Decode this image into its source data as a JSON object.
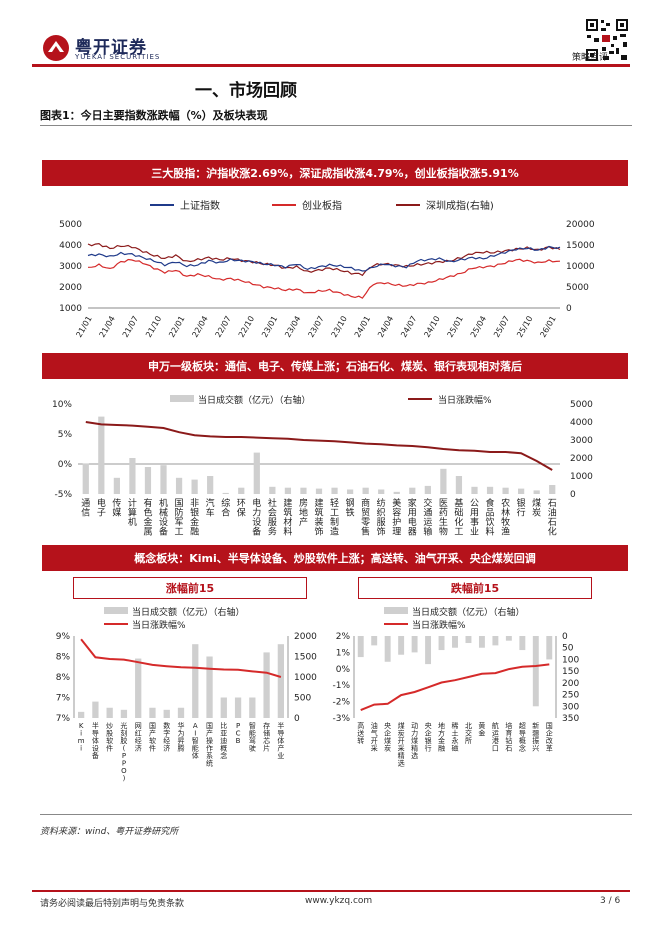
{
  "header": {
    "brand_cn": "粤开证券",
    "brand_en": "YUEKAI SECURITIES",
    "report_type": "策略点评"
  },
  "section_title": "一、市场回顾",
  "figure_title": "图表1：今日主要指数涨跌幅（%）及板块表现",
  "colors": {
    "brand_red": "#b5121b",
    "blue": "#1f3a8a",
    "red": "#d52a2a",
    "brown": "#8b1a1a",
    "bar_grey": "#cfcfcf"
  },
  "banners": {
    "indices": "三大股指：沪指收涨2.69%，深证成指收涨4.79%，创业板指收涨5.91%",
    "sectors": "申万一级板块：通信、电子、传媒上涨；石油石化、煤炭、银行表现相对落后",
    "concepts": "概念板块：Kimi、半导体设备、炒股软件上涨；高送转、油气开采、央企煤炭回调"
  },
  "subheads": {
    "up": "涨幅前15",
    "down": "跌幅前15"
  },
  "chart_data": [
    {
      "type": "line",
      "legend": [
        "上证指数",
        "创业板指",
        "深圳成指(右轴)"
      ],
      "x_ticks": [
        "21/01",
        "21/04",
        "21/07",
        "21/10",
        "22/01",
        "22/04",
        "22/07",
        "22/10",
        "23/01",
        "23/04",
        "23/07",
        "23/10",
        "24/01",
        "24/04",
        "24/07",
        "24/10",
        "25/01",
        "25/04",
        "25/07",
        "25/10",
        "26/01"
      ],
      "y_left_ticks": [
        "1000",
        "2000",
        "3000",
        "4000",
        "5000"
      ],
      "y_right_ticks": [
        "0",
        "5000",
        "10000",
        "15000",
        "20000"
      ],
      "ylim_left": [
        1000,
        5000
      ],
      "ylim_right": [
        0,
        20000
      ],
      "series": [
        {
          "name": "上证指数",
          "axis": "left",
          "values": [
            3500,
            3550,
            3450,
            3600,
            3560,
            3400,
            3250,
            3050,
            3200,
            3000,
            3050,
            3250,
            3150,
            3300,
            3250,
            3200,
            3100,
            3050,
            2950,
            3100,
            2850,
            2950,
            3050,
            3000,
            2900,
            2750,
            2950,
            3100,
            3000,
            2950,
            3250,
            3300,
            3350,
            3200,
            3300,
            3400,
            3350,
            3500,
            3650,
            3800,
            3850,
            3750,
            3900,
            3850
          ]
        },
        {
          "name": "创业板指",
          "axis": "left",
          "values": [
            2900,
            3050,
            2850,
            3200,
            3300,
            3150,
            2900,
            2700,
            2800,
            2500,
            2600,
            2500,
            2350,
            2400,
            2300,
            2150,
            2000,
            1950,
            1850,
            1900,
            1700,
            1800,
            1850,
            1700,
            1550,
            1500,
            2150,
            2200,
            2100,
            2050,
            2150,
            2200,
            2350,
            2500,
            2650,
            2900,
            2950,
            3000,
            3150,
            3300,
            3250,
            3150,
            3250,
            3200
          ]
        },
        {
          "name": "深圳成指(右轴)",
          "axis": "right",
          "values": [
            15000,
            15200,
            14200,
            14800,
            14600,
            13500,
            12500,
            11800,
            12500,
            11000,
            11500,
            12000,
            11500,
            11800,
            11300,
            11000,
            10500,
            10200,
            9500,
            9800,
            8600,
            9000,
            9500,
            9000,
            8300,
            8000,
            10200,
            10500,
            10200,
            9900,
            10300,
            10600,
            11000,
            11200,
            12000,
            13000,
            13300,
            13200,
            13600,
            14000,
            14300,
            13800,
            14500,
            14000
          ]
        }
      ]
    },
    {
      "type": "bar",
      "legend": [
        "当日成交额（亿元）（右轴）",
        "当日涨跌幅%"
      ],
      "categories": [
        "通信",
        "电子",
        "传媒",
        "计算机",
        "有色金属",
        "机械设备",
        "国防军工",
        "非银金融",
        "汽车",
        "综合",
        "环保",
        "电力设备",
        "社会服务",
        "建筑材料",
        "房地产",
        "建筑装饰",
        "轻工制造",
        "钢铁",
        "商贸零售",
        "纺织服饰",
        "美容护理",
        "家用电器",
        "交通运输",
        "医药生物",
        "基础化工",
        "公用事业",
        "食品饮料",
        "农林牧渔",
        "银行",
        "煤炭",
        "石油石化"
      ],
      "y_left_ticks": [
        "-5%",
        "0%",
        "5%",
        "10%"
      ],
      "y_right_ticks": [
        "0",
        "1000",
        "2000",
        "3000",
        "4000",
        "5000"
      ],
      "ylim_left": [
        -5,
        10
      ],
      "ylim_right": [
        0,
        5000
      ],
      "series": [
        {
          "name": "当日成交额（亿元）（右轴）",
          "axis": "right",
          "values": [
            1700,
            4300,
            900,
            2000,
            1500,
            1600,
            900,
            800,
            1000,
            60,
            350,
            2300,
            400,
            350,
            350,
            300,
            350,
            250,
            350,
            250,
            120,
            350,
            450,
            1400,
            1000,
            400,
            400,
            350,
            300,
            200,
            500
          ]
        },
        {
          "name": "当日涨跌幅%",
          "axis": "left",
          "values": [
            7.0,
            6.6,
            6.5,
            6.4,
            6.2,
            6.0,
            5.3,
            4.8,
            4.6,
            4.5,
            4.5,
            4.4,
            4.3,
            4.2,
            4.0,
            3.9,
            3.8,
            3.6,
            3.4,
            3.3,
            3.1,
            3.0,
            2.8,
            2.5,
            2.3,
            2.2,
            2.0,
            2.0,
            1.8,
            0.5,
            -1.0
          ]
        }
      ]
    },
    {
      "type": "bar",
      "legend": [
        "当日成交额（亿元）（右轴）",
        "当日涨跌幅%"
      ],
      "categories": [
        "Kimi",
        "半导体设备",
        "炒股软件",
        "光刻胶(PPO)",
        "网红经济",
        "国产软件",
        "数字经济",
        "华为昇腾",
        "AI智能体",
        "国产操作系统",
        "比亚迪概念",
        "PCB",
        "智能驾驶",
        "存储芯片",
        "半导体产业"
      ],
      "y_left_ticks": [
        "7%",
        "7%",
        "8%",
        "8%",
        "9%"
      ],
      "y_right_ticks": [
        "0",
        "500",
        "1000",
        "1500",
        "2000"
      ],
      "ylim_left": [
        6.5,
        9.0
      ],
      "ylim_right": [
        0,
        2000
      ],
      "series": [
        {
          "name": "当日成交额（亿元）（右轴）",
          "axis": "right",
          "values": [
            150,
            400,
            250,
            200,
            1450,
            250,
            200,
            250,
            1800,
            1500,
            500,
            500,
            500,
            1600,
            1800
          ]
        },
        {
          "name": "当日涨跌幅%",
          "axis": "left",
          "values": [
            8.9,
            8.35,
            8.3,
            8.28,
            8.2,
            8.12,
            8.08,
            8.05,
            8.03,
            8.0,
            7.98,
            7.97,
            7.92,
            7.88,
            7.75
          ]
        }
      ]
    },
    {
      "type": "bar",
      "legend": [
        "当日成交额（亿元）（右轴）",
        "当日涨跌幅%"
      ],
      "categories": [
        "高送转",
        "油气开采",
        "央企煤炭",
        "煤炭开采精选",
        "动力煤精选",
        "央企银行",
        "地方金融",
        "稀土永磁",
        "北交所",
        "黄金",
        "航运港口",
        "培育钻石",
        "超导概念",
        "新疆振兴",
        "国企改革"
      ],
      "y_left_ticks": [
        "-3%",
        "-2%",
        "-1%",
        "0%",
        "1%",
        "2%"
      ],
      "y_right_ticks": [
        "0",
        "50",
        "100",
        "150",
        "200",
        "250",
        "300",
        "350"
      ],
      "ylim_left": [
        -3.2,
        2.0
      ],
      "ylim_right": [
        350,
        0
      ],
      "series": [
        {
          "name": "当日成交额（亿元）（右轴）",
          "axis": "right",
          "values": [
            90,
            40,
            110,
            80,
            70,
            120,
            60,
            50,
            30,
            50,
            40,
            20,
            60,
            300,
            100
          ]
        },
        {
          "name": "当日涨跌幅%",
          "axis": "left",
          "values": [
            -2.7,
            -2.35,
            -2.3,
            -1.75,
            -1.55,
            -1.25,
            -0.95,
            -0.8,
            -0.6,
            -0.4,
            -0.35,
            -0.1,
            0.05,
            0.1,
            0.2
          ]
        }
      ]
    }
  ],
  "source": "资料来源：wind、粤开证券研究所",
  "footer": {
    "disclaimer": "请务必阅读最后特别声明与免责条款",
    "website": "www.ykzq.com",
    "page": "3 / 6"
  }
}
